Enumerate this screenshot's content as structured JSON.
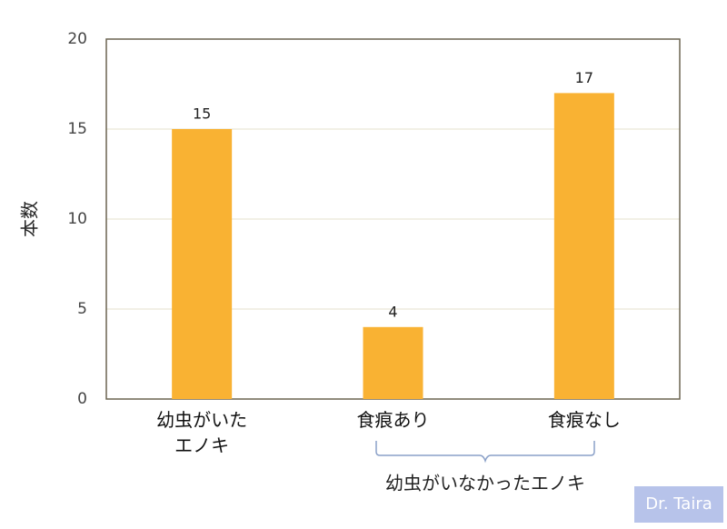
{
  "chart_data": {
    "type": "bar",
    "ylabel": "本数",
    "categories": [
      "幼虫がいた\nエノキ",
      "食痕あり",
      "食痕なし"
    ],
    "values": [
      15,
      4,
      17
    ],
    "color": "#f9b233",
    "ylim": [
      0,
      20
    ],
    "yticks": [
      0,
      5,
      10,
      15,
      20
    ],
    "grid": true,
    "annotation": "幼虫がいなかったエノキ",
    "watermark": "Dr. Taira"
  }
}
